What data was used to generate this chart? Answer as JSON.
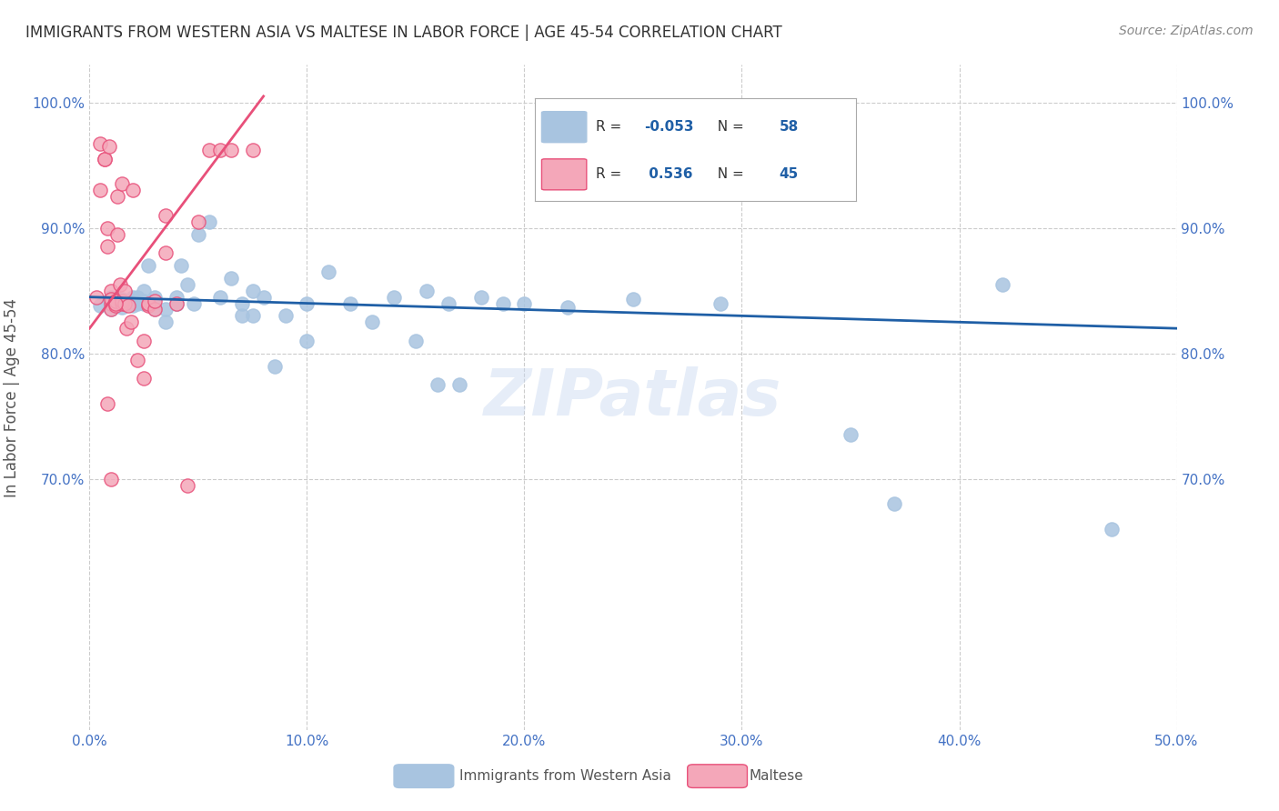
{
  "title": "IMMIGRANTS FROM WESTERN ASIA VS MALTESE IN LABOR FORCE | AGE 45-54 CORRELATION CHART",
  "source": "Source: ZipAtlas.com",
  "ylabel": "In Labor Force | Age 45-54",
  "x_min": 0.0,
  "x_max": 0.5,
  "y_min": 0.5,
  "y_max": 1.03,
  "x_ticks": [
    0.0,
    0.1,
    0.2,
    0.3,
    0.4,
    0.5
  ],
  "x_tick_labels": [
    "0.0%",
    "10.0%",
    "20.0%",
    "30.0%",
    "40.0%",
    "50.0%"
  ],
  "y_ticks": [
    0.7,
    0.8,
    0.9,
    1.0
  ],
  "y_tick_labels": [
    "70.0%",
    "80.0%",
    "90.0%",
    "100.0%"
  ],
  "blue_R": -0.053,
  "blue_N": 58,
  "pink_R": 0.536,
  "pink_N": 45,
  "blue_color": "#a8c4e0",
  "blue_line_color": "#1f5fa6",
  "pink_color": "#f4a7b9",
  "pink_line_color": "#e8507a",
  "legend_label_blue": "Immigrants from Western Asia",
  "legend_label_pink": "Maltese",
  "grid_color": "#cccccc",
  "title_color": "#333333",
  "axis_label_color": "#4472c4",
  "watermark": "ZIPatlas",
  "blue_scatter_x": [
    0.005,
    0.01,
    0.01,
    0.012,
    0.015,
    0.015,
    0.018,
    0.018,
    0.02,
    0.02,
    0.022,
    0.022,
    0.025,
    0.025,
    0.025,
    0.027,
    0.03,
    0.03,
    0.035,
    0.035,
    0.04,
    0.04,
    0.04,
    0.042,
    0.045,
    0.048,
    0.05,
    0.055,
    0.06,
    0.065,
    0.07,
    0.07,
    0.075,
    0.075,
    0.08,
    0.085,
    0.09,
    0.1,
    0.1,
    0.11,
    0.12,
    0.13,
    0.14,
    0.15,
    0.155,
    0.16,
    0.165,
    0.17,
    0.18,
    0.19,
    0.2,
    0.22,
    0.25,
    0.29,
    0.35,
    0.37,
    0.42,
    0.47
  ],
  "blue_scatter_y": [
    0.838,
    0.845,
    0.835,
    0.842,
    0.843,
    0.837,
    0.84,
    0.842,
    0.838,
    0.845,
    0.845,
    0.84,
    0.84,
    0.842,
    0.85,
    0.87,
    0.835,
    0.845,
    0.825,
    0.835,
    0.84,
    0.845,
    0.84,
    0.87,
    0.855,
    0.84,
    0.895,
    0.905,
    0.845,
    0.86,
    0.84,
    0.83,
    0.85,
    0.83,
    0.845,
    0.79,
    0.83,
    0.81,
    0.84,
    0.865,
    0.84,
    0.825,
    0.845,
    0.81,
    0.85,
    0.775,
    0.84,
    0.775,
    0.845,
    0.84,
    0.84,
    0.837,
    0.843,
    0.84,
    0.735,
    0.68,
    0.855,
    0.66
  ],
  "blue_trend_x": [
    0.0,
    0.5
  ],
  "blue_trend_y": [
    0.845,
    0.82
  ],
  "pink_scatter_x": [
    0.003,
    0.005,
    0.005,
    0.007,
    0.007,
    0.008,
    0.008,
    0.009,
    0.01,
    0.01,
    0.01,
    0.01,
    0.012,
    0.012,
    0.013,
    0.013,
    0.014,
    0.015,
    0.015,
    0.015,
    0.016,
    0.016,
    0.017,
    0.018,
    0.019,
    0.02,
    0.022,
    0.025,
    0.025,
    0.027,
    0.027,
    0.03,
    0.03,
    0.035,
    0.035,
    0.04,
    0.045,
    0.05,
    0.055,
    0.06,
    0.065,
    0.075,
    0.01,
    0.008,
    0.012
  ],
  "pink_scatter_y": [
    0.845,
    0.967,
    0.93,
    0.955,
    0.955,
    0.885,
    0.9,
    0.965,
    0.84,
    0.85,
    0.843,
    0.835,
    0.838,
    0.842,
    0.925,
    0.895,
    0.855,
    0.84,
    0.842,
    0.935,
    0.84,
    0.85,
    0.82,
    0.838,
    0.825,
    0.93,
    0.795,
    0.81,
    0.78,
    0.838,
    0.84,
    0.835,
    0.842,
    0.91,
    0.88,
    0.84,
    0.695,
    0.905,
    0.962,
    0.962,
    0.962,
    0.962,
    0.7,
    0.76,
    0.84
  ],
  "pink_trend_x": [
    0.0,
    0.08
  ],
  "pink_trend_y": [
    0.82,
    1.005
  ]
}
